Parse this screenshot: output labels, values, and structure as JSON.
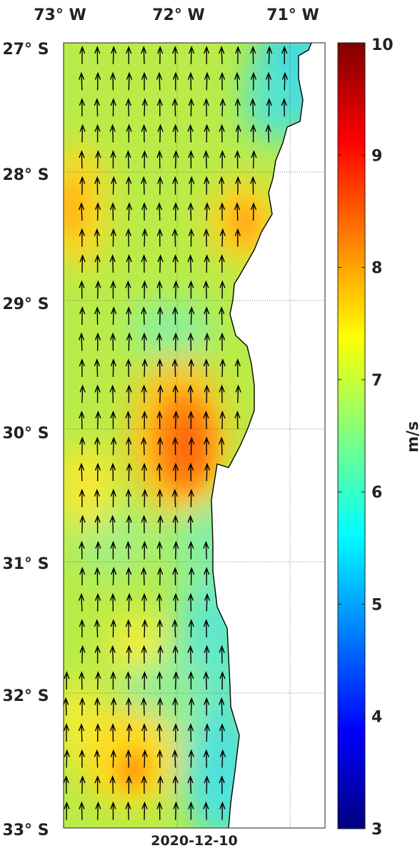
{
  "map": {
    "lon_labels": [
      "73° W",
      "72° W",
      "71° W"
    ],
    "lat_labels": [
      "27° S",
      "28° S",
      "29° S",
      "30° S",
      "31° S",
      "32° S",
      "33° S"
    ],
    "lon_range": [
      -73,
      -70.7
    ],
    "lat_range": [
      -33,
      -27
    ],
    "date": "2020-12-10",
    "grid": "dotted",
    "wind_direction": "northward"
  },
  "colorbar": {
    "unit": "m/s",
    "min": 3,
    "max": 10,
    "ticks": [
      "3",
      "4",
      "5",
      "6",
      "7",
      "8",
      "9",
      "10"
    ],
    "colormap": "jet"
  },
  "colors": {
    "land": "#ffffff",
    "coast": "#000000",
    "arrow": "#000000"
  }
}
